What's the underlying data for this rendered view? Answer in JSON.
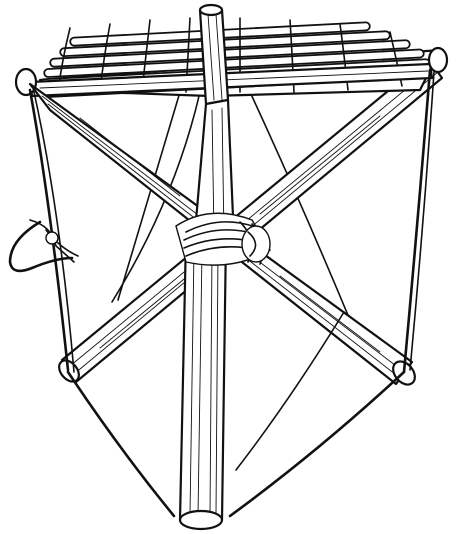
{
  "illustration": {
    "subject": "tripod-camp-stool",
    "style": "black-and-white line drawing",
    "colors": {
      "ink": "#111111",
      "background": "#ffffff"
    }
  }
}
